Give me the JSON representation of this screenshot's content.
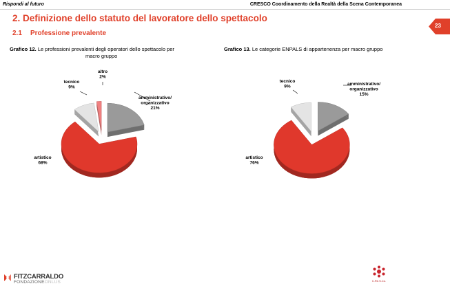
{
  "header": {
    "left": "Rispondi al futuro",
    "right": "CRESCO Coordinamento della Realtà della Scena Contemporanea"
  },
  "page_number": "23",
  "section_title": "2. Definizione dello statuto del lavoratore dello spettacolo",
  "subsection": {
    "number": "2.1",
    "title": "Professione prevalente"
  },
  "charts": [
    {
      "caption_label": "Grafico 12.",
      "caption_line1": "Le professioni prevalenti degli operatori dello spettacolo per",
      "caption_line2": "macro gruppo"
    },
    {
      "caption_label": "Grafico 13.",
      "caption_line1": "Le categorie ENPALS di appartenenza per macro gruppo"
    }
  ],
  "chart_data": [
    {
      "type": "pie",
      "title": "Le professioni prevalenti degli operatori dello spettacolo per macro gruppo",
      "slices": [
        {
          "label": "amministrativo/ organizzativo",
          "label_lines": [
            "amministrativo/",
            "organizzativo"
          ],
          "value": 21,
          "value_label": "21%",
          "color": "#9a9a9a"
        },
        {
          "label": "artistico",
          "label_lines": [
            "artistico"
          ],
          "value": 68,
          "value_label": "68%",
          "color": "#e0382c"
        },
        {
          "label": "tecnico",
          "label_lines": [
            "tecnico"
          ],
          "value": 9,
          "value_label": "9%",
          "color": "#e4e4e4"
        },
        {
          "label": "altro",
          "label_lines": [
            "altro"
          ],
          "value": 2,
          "value_label": "2%",
          "color": "#f08080"
        }
      ]
    },
    {
      "type": "pie",
      "title": "Le categorie ENPALS di appartenenza per macro gruppo",
      "slices": [
        {
          "label": "amministrativo/ organizzativo",
          "label_lines": [
            "amministrativo/",
            "organizzativo"
          ],
          "value": 15,
          "value_label": "15%",
          "color": "#9a9a9a"
        },
        {
          "label": "artistico",
          "label_lines": [
            "artistico"
          ],
          "value": 76,
          "value_label": "76%",
          "color": "#e0382c"
        },
        {
          "label": "tecnico",
          "label_lines": [
            "tecnico"
          ],
          "value": 9,
          "value_label": "9%",
          "color": "#e4e4e4"
        }
      ]
    }
  ],
  "footer": {
    "left_logo_name": "FITZCARRALDO",
    "left_logo_sub1": "FONDAZIONE",
    "left_logo_sub2": "ONLUS",
    "right_logo_text": "C.Re.S.Co.",
    "left_logo_icon": "fitzcarraldo-logo-icon",
    "right_logo_icon": "cresco-logo-icon"
  }
}
